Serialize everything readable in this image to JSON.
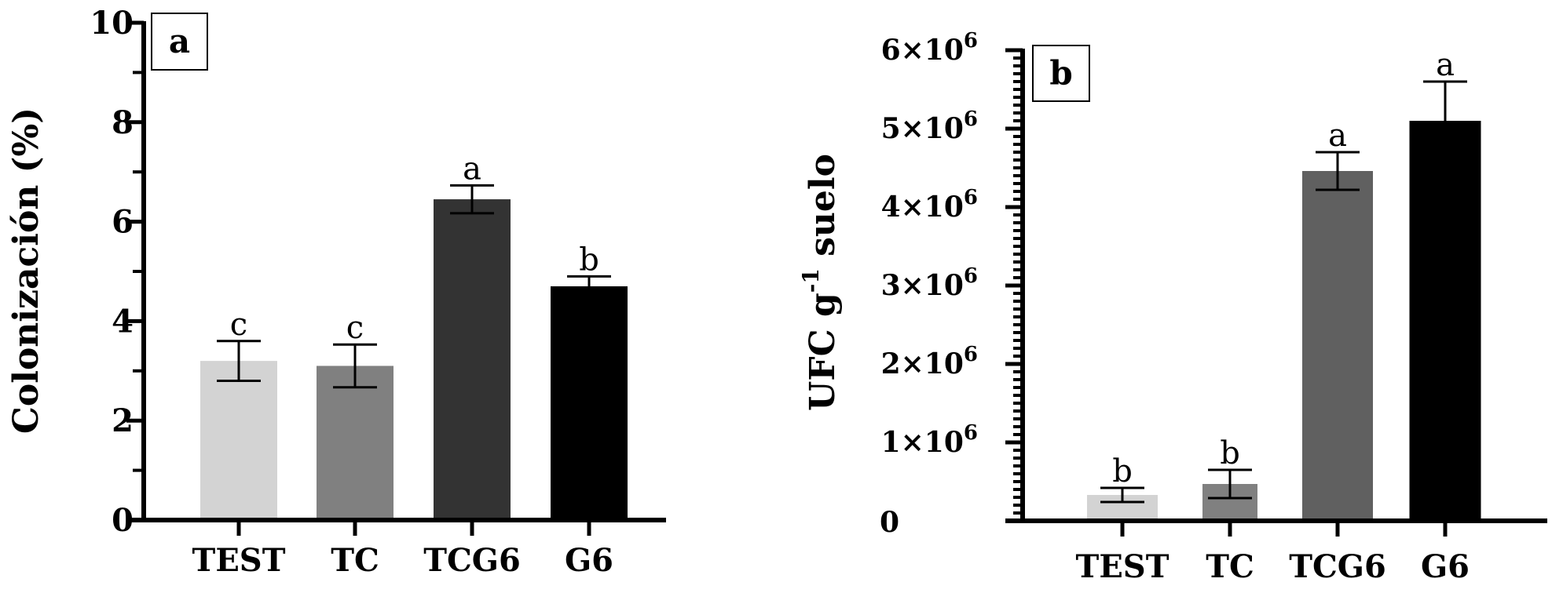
{
  "chart_data": [
    {
      "type": "bar",
      "panel_label": "a",
      "title": "",
      "xlabel": "",
      "ylabel": "Colonización (%)",
      "ylim": [
        0,
        10
      ],
      "yticks": [
        0,
        2,
        4,
        6,
        8,
        10
      ],
      "ytick_labels": [
        "0",
        "2",
        "4",
        "6",
        "8",
        "10"
      ],
      "categories": [
        "TEST",
        "TC",
        "TCG6",
        "G6"
      ],
      "values": [
        3.2,
        3.1,
        6.45,
        4.7
      ],
      "error": [
        0.4,
        0.43,
        0.28,
        0.2
      ],
      "significance": [
        "c",
        "c",
        "a",
        "b"
      ],
      "colors": [
        "#d3d3d3",
        "#808080",
        "#333333",
        "#000000"
      ],
      "grid": false
    },
    {
      "type": "bar",
      "panel_label": "b",
      "title": "",
      "xlabel": "",
      "ylabel": "UFC g",
      "ylabel_sup": "-1",
      "ylabel_suffix": " suelo",
      "ylim": [
        0,
        6000000
      ],
      "yticks": [
        0,
        1000000,
        2000000,
        3000000,
        4000000,
        5000000,
        6000000
      ],
      "ytick_labels": [
        "0",
        "1×10",
        "2×10",
        "3×10",
        "4×10",
        "5×10",
        "6×10"
      ],
      "ytick_exponent": "6",
      "categories": [
        "TEST",
        "TC",
        "TCG6",
        "G6"
      ],
      "values": [
        330000,
        470000,
        4460000,
        5100000
      ],
      "error": [
        90000,
        180000,
        240000,
        500000
      ],
      "significance": [
        "b",
        "b",
        "a",
        "a"
      ],
      "colors": [
        "#d3d3d3",
        "#808080",
        "#606060",
        "#000000"
      ],
      "grid": false
    }
  ]
}
